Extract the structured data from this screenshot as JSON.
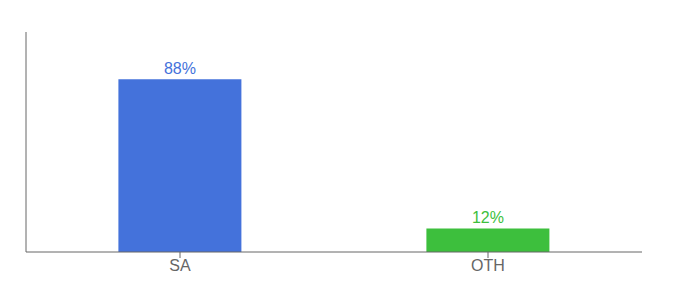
{
  "chart_data": {
    "type": "bar",
    "categories": [
      "SA",
      "OTH"
    ],
    "values": [
      88,
      12
    ],
    "value_labels": [
      "88%",
      "12%"
    ],
    "colors": [
      "#4472db",
      "#3dbf3d"
    ],
    "ylim": [
      0,
      112
    ],
    "data_labels": true,
    "tick_labels": "x",
    "grid": false
  }
}
